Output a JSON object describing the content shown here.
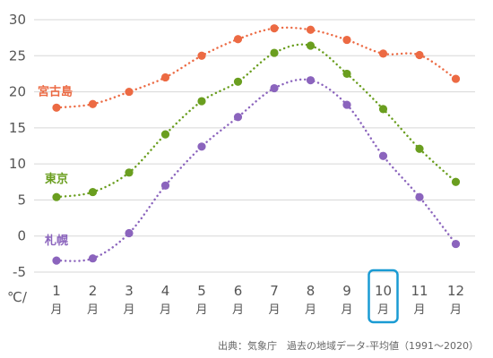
{
  "chart_data": {
    "type": "line",
    "unit_label": "℃/",
    "x_unit": "月",
    "categories": [
      "1",
      "2",
      "3",
      "4",
      "5",
      "6",
      "7",
      "8",
      "9",
      "10",
      "11",
      "12"
    ],
    "highlighted_category": "10",
    "ylim": [
      -5,
      30
    ],
    "yticks": [
      -5,
      0,
      5,
      10,
      15,
      20,
      25,
      30
    ],
    "grid": true,
    "series": [
      {
        "name": "宮古島",
        "color": "#ec6a43",
        "values": [
          17.8,
          18.3,
          20.0,
          22.0,
          25.0,
          27.3,
          28.8,
          28.6,
          27.2,
          25.3,
          25.1,
          21.8
        ]
      },
      {
        "name": "東京",
        "color": "#6a9e1f",
        "values": [
          5.4,
          6.1,
          8.8,
          14.1,
          18.7,
          21.4,
          25.4,
          26.4,
          22.5,
          17.6,
          12.1,
          7.5
        ]
      },
      {
        "name": "札幌",
        "color": "#8b64bd",
        "values": [
          -3.4,
          -3.1,
          0.4,
          7.0,
          12.4,
          16.5,
          20.5,
          21.6,
          18.2,
          11.1,
          5.4,
          -1.1
        ]
      }
    ],
    "source": "出典：気象庁　過去の地域データ-平均値（1991〜2020）"
  },
  "highlight_color": "#1a9bd3"
}
